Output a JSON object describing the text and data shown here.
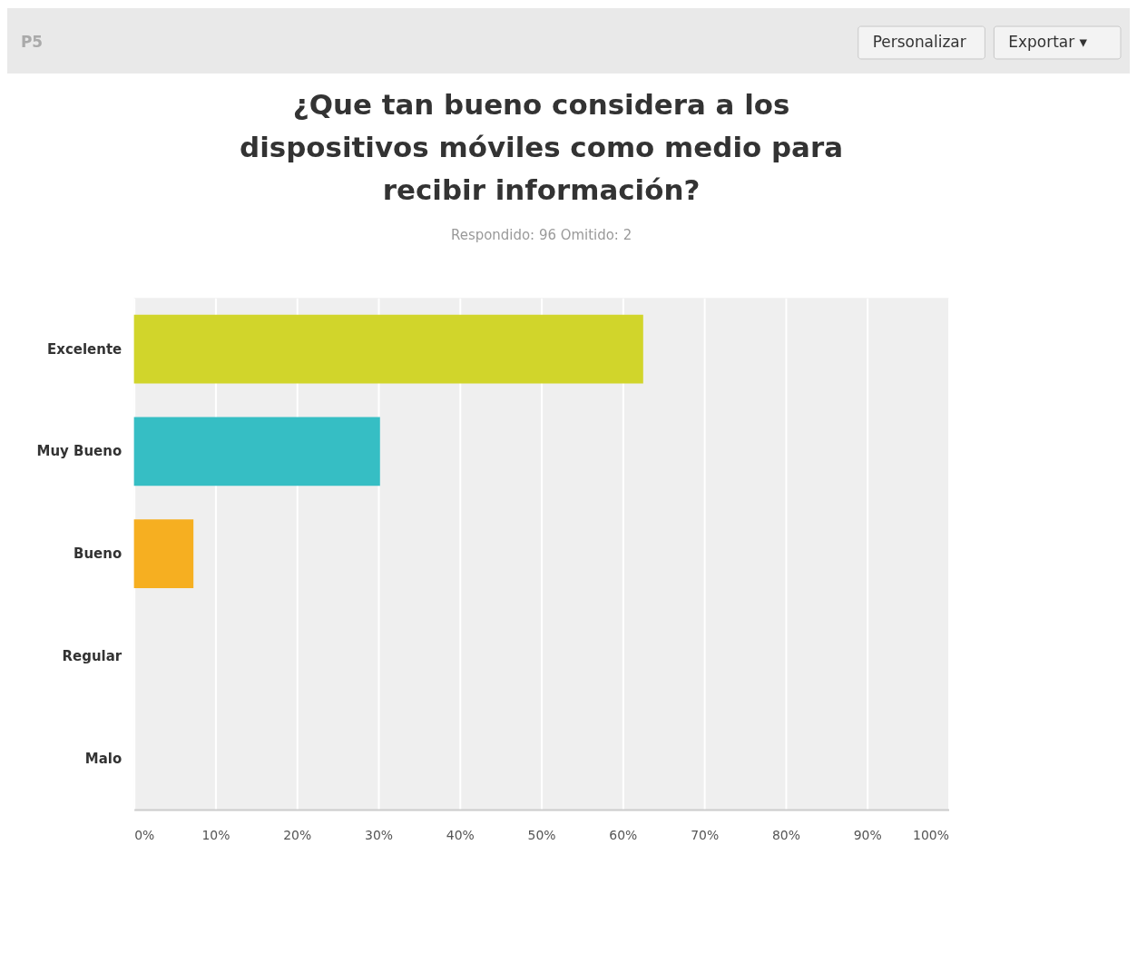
{
  "chart_data": {
    "type": "bar",
    "orientation": "horizontal",
    "title": [
      "¿Que tan bueno considera a los",
      "dispositivos móviles como medio para",
      "recibir información?"
    ],
    "subtitle": "Respondido: 96 Omitido: 2",
    "categories": [
      "Excelente",
      "Muy Bueno",
      "Bueno",
      "Regular",
      "Malo"
    ],
    "values": [
      62.5,
      30.2,
      7.3,
      0,
      0
    ],
    "colors": [
      "#d1d52b",
      "#36bec4",
      "#f6af21",
      "#999999",
      "#999999"
    ],
    "xlim": [
      0,
      100
    ],
    "xticks": [
      {
        "value": 0,
        "label": "0%"
      },
      {
        "value": 10,
        "label": "10%"
      },
      {
        "value": 20,
        "label": "20%"
      },
      {
        "value": 30,
        "label": "30%"
      },
      {
        "value": 40,
        "label": "40%"
      },
      {
        "value": 50,
        "label": "50%"
      },
      {
        "value": 60,
        "label": "60%"
      },
      {
        "value": 70,
        "label": "70%"
      },
      {
        "value": 80,
        "label": "80%"
      },
      {
        "value": 90,
        "label": "90%"
      },
      {
        "value": 100,
        "label": "100%"
      }
    ],
    "grid": "x",
    "annotations": [
      "P5",
      "Personalizar",
      "Exportar ▾"
    ]
  }
}
